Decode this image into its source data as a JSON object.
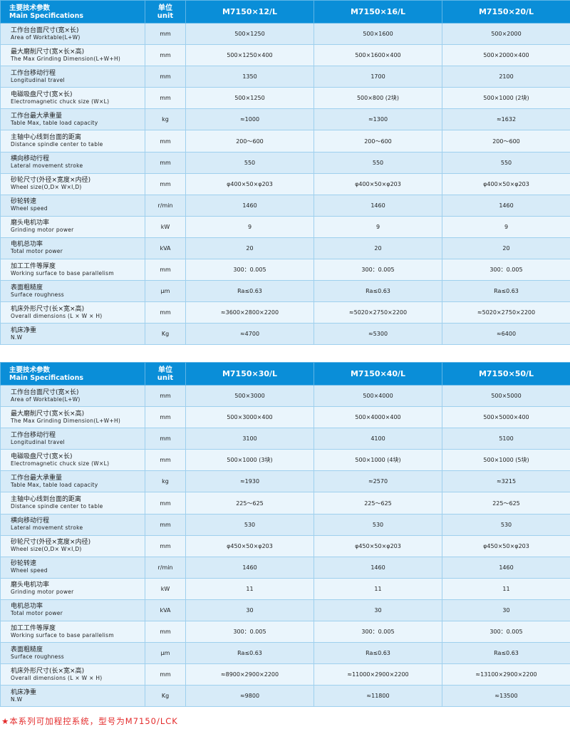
{
  "header": {
    "label_cn": "主要技术参数",
    "label_en": "Main Specifications",
    "unit_cn": "单位",
    "unit_en": "unit"
  },
  "tables": [
    {
      "models": [
        "M7150×12/L",
        "M7150×16/L",
        "M7150×20/L"
      ],
      "rows": [
        {
          "cn": "工作台台面尺寸(宽×长)",
          "en": "Area of Worktable(L+W)",
          "unit": "mm",
          "values": [
            "500×1250",
            "500×1600",
            "500×2000"
          ]
        },
        {
          "cn": "最大磨削尺寸(宽×长×高)",
          "en": "The Max Grinding Dimension(L+W+H)",
          "unit": "mm",
          "values": [
            "500×1250×400",
            "500×1600×400",
            "500×2000×400"
          ]
        },
        {
          "cn": "工作台移动行程",
          "en": "Longitudinal travel",
          "unit": "mm",
          "values": [
            "1350",
            "1700",
            "2100"
          ]
        },
        {
          "cn": "电磁吸盘尺寸(宽×长)",
          "en": "Electromagnetic chuck size (W×L)",
          "unit": "mm",
          "values": [
            "500×1250",
            "500×800 (2块)",
            "500×1000 (2块)"
          ]
        },
        {
          "cn": "工作台最大承重量",
          "en": "Table Max, table load capacity",
          "unit": "kg",
          "values": [
            "≈1000",
            "≈1300",
            "≈1632"
          ]
        },
        {
          "cn": "主轴中心线到台面的距离",
          "en": "Distance spindle center to table",
          "unit": "mm",
          "values": [
            "200～600",
            "200～600",
            "200～600"
          ]
        },
        {
          "cn": "横向移动行程",
          "en": "Lateral movement stroke",
          "unit": "mm",
          "values": [
            "550",
            "550",
            "550"
          ]
        },
        {
          "cn": "砂轮尺寸(外径×宽度×内径)",
          "en": "Wheel size(O,D× W×I,D)",
          "unit": "mm",
          "values": [
            "φ400×50×φ203",
            "φ400×50×φ203",
            "φ400×50×φ203"
          ]
        },
        {
          "cn": "砂轮转速",
          "en": "Wheel speed",
          "unit": "r/min",
          "values": [
            "1460",
            "1460",
            "1460"
          ]
        },
        {
          "cn": "磨头电机功率",
          "en": "Grinding motor power",
          "unit": "kW",
          "values": [
            "9",
            "9",
            "9"
          ]
        },
        {
          "cn": "电机总功率",
          "en": "Total motor power",
          "unit": "kVA",
          "values": [
            "20",
            "20",
            "20"
          ]
        },
        {
          "cn": "加工工件等厚度",
          "en": "Working surface to  base parallelism",
          "unit": "mm",
          "values": [
            "300：0.005",
            "300：0.005",
            "300：0.005"
          ]
        },
        {
          "cn": "表面粗糙度",
          "en": "Surface roughness",
          "unit": "μm",
          "values": [
            "Ra≤0.63",
            "Ra≤0.63",
            "Ra≤0.63"
          ]
        },
        {
          "cn": "机床外形尺寸(长×宽×高)",
          "en": "Overall dimensions (L × W × H)",
          "unit": "mm",
          "values": [
            "≈3600×2800×2200",
            "≈5020×2750×2200",
            "≈5020×2750×2200"
          ]
        },
        {
          "cn": "机床净重",
          "en": "N.W",
          "unit": "Kg",
          "values": [
            "≈4700",
            "≈5300",
            "≈6400"
          ]
        }
      ]
    },
    {
      "models": [
        "M7150×30/L",
        "M7150×40/L",
        "M7150×50/L"
      ],
      "rows": [
        {
          "cn": "工作台台面尺寸(宽×长)",
          "en": "Area of Worktable(L+W)",
          "unit": "mm",
          "values": [
            "500×3000",
            "500×4000",
            "500×5000"
          ]
        },
        {
          "cn": "最大磨削尺寸(宽×长×高)",
          "en": "The Max Grinding Dimension(L+W+H)",
          "unit": "mm",
          "values": [
            "500×3000×400",
            "500×4000×400",
            "500×5000×400"
          ]
        },
        {
          "cn": "工作台移动行程",
          "en": "Longitudinal travel",
          "unit": "mm",
          "values": [
            "3100",
            "4100",
            "5100"
          ]
        },
        {
          "cn": "电磁吸盘尺寸(宽×长)",
          "en": "Electromagnetic chuck size (W×L)",
          "unit": "mm",
          "values": [
            "500×1000 (3块)",
            "500×1000 (4块)",
            "500×1000 (5块)"
          ]
        },
        {
          "cn": "工作台最大承重量",
          "en": "Table Max, table load capacity",
          "unit": "kg",
          "values": [
            "≈1930",
            "≈2570",
            "≈3215"
          ]
        },
        {
          "cn": "主轴中心线到台面的距离",
          "en": "Distance spindle center to table",
          "unit": "mm",
          "values": [
            "225～625",
            "225～625",
            "225～625"
          ]
        },
        {
          "cn": "横向移动行程",
          "en": "Lateral movement stroke",
          "unit": "mm",
          "values": [
            "530",
            "530",
            "530"
          ]
        },
        {
          "cn": "砂轮尺寸(外径×宽度×内径)",
          "en": "Wheel size(O,D× W×I,D)",
          "unit": "mm",
          "values": [
            "φ450×50×φ203",
            "φ450×50×φ203",
            "φ450×50×φ203"
          ]
        },
        {
          "cn": "砂轮转速",
          "en": "Wheel speed",
          "unit": "r/min",
          "values": [
            "1460",
            "1460",
            "1460"
          ]
        },
        {
          "cn": "磨头电机功率",
          "en": "Grinding motor power",
          "unit": "kW",
          "values": [
            "11",
            "11",
            "11"
          ]
        },
        {
          "cn": "电机总功率",
          "en": "Total motor power",
          "unit": "kVA",
          "values": [
            "30",
            "30",
            "30"
          ]
        },
        {
          "cn": "加工工件等厚度",
          "en": "Working surface to  base parallelism",
          "unit": "mm",
          "values": [
            "300：0.005",
            "300：0.005",
            "300：0.005"
          ]
        },
        {
          "cn": "表面粗糙度",
          "en": "Surface roughness",
          "unit": "μm",
          "values": [
            "Ra≤0.63",
            "Ra≤0.63",
            "Ra≤0.63"
          ]
        },
        {
          "cn": "机床外形尺寸(长×宽×高)",
          "en": "Overall dimensions (L × W × H)",
          "unit": "mm",
          "values": [
            "≈8900×2900×2200",
            "≈11000×2900×2200",
            "≈13100×2900×2200"
          ]
        },
        {
          "cn": "机床净重",
          "en": "N.W",
          "unit": "Kg",
          "values": [
            "≈9800",
            "≈11800",
            "≈13500"
          ]
        }
      ]
    }
  ],
  "footnote": "★本系列可加程控系统，型号为M7150/LCK"
}
